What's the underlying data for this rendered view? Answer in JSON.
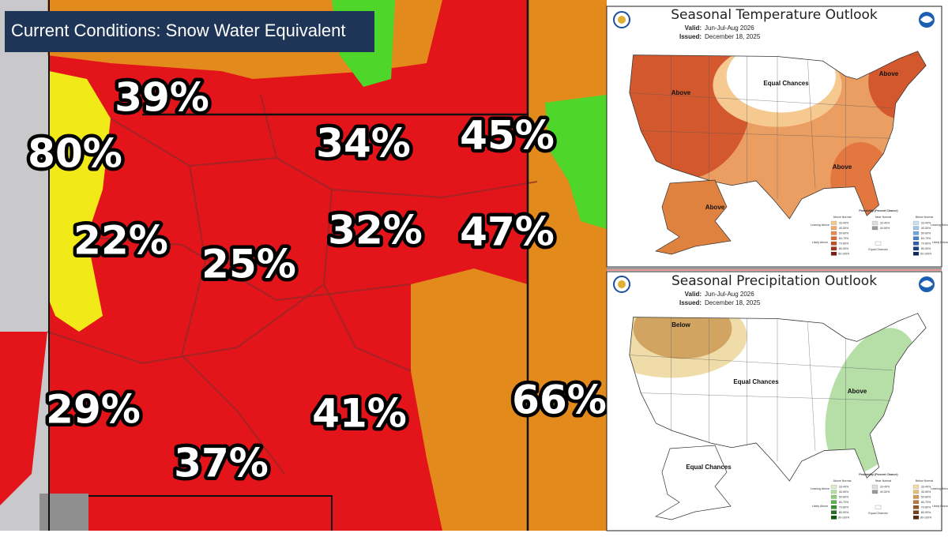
{
  "snow_map": {
    "title": "Current Conditions: Snow Water Equivalent",
    "labels": [
      "39%",
      "80%",
      "34%",
      "45%",
      "22%",
      "32%",
      "47%",
      "25%",
      "29%",
      "41%",
      "37%",
      "66%"
    ]
  },
  "temperature_outlook": {
    "title": "Seasonal Temperature Outlook",
    "valid": "Valid:",
    "valid_period": "Jun-Jul-Aug 2026",
    "issued": "Issued:",
    "issued_date": "December 18, 2025",
    "map_labels": [
      "Above",
      "Equal Chances",
      "Above",
      "Above",
      "Above"
    ],
    "legend": {
      "title": "Probability (Percent Chance)",
      "columns": [
        "Above Normal",
        "Near Normal",
        "Below Normal"
      ],
      "side_labels": [
        "Leaning Above",
        "Likely Above",
        "Equal Chances",
        "Leaning Below",
        "Likely Below"
      ],
      "bins": [
        "33-40%",
        "40-50%",
        "50-60%",
        "60-70%",
        "70-80%",
        "80-90%",
        "90-100%"
      ]
    }
  },
  "precipitation_outlook": {
    "title": "Seasonal Precipitation Outlook",
    "valid": "Valid:",
    "valid_period": "Jun-Jul-Aug 2026",
    "issued": "Issued:",
    "issued_date": "December 18, 2025",
    "map_labels": [
      "Below",
      "Equal Chances",
      "Above",
      "Equal Chances"
    ],
    "legend": {
      "title": "Probability (Percent Chance)",
      "columns": [
        "Above Normal",
        "Near Normal",
        "Below Normal"
      ],
      "side_labels": [
        "Leaning Above",
        "Likely Above",
        "Equal Chances",
        "Leaning Below",
        "Likely Below"
      ],
      "bins": [
        "33-40%",
        "40-50%",
        "50-60%",
        "60-70%",
        "70-80%",
        "80-90%",
        "90-100%"
      ]
    }
  }
}
